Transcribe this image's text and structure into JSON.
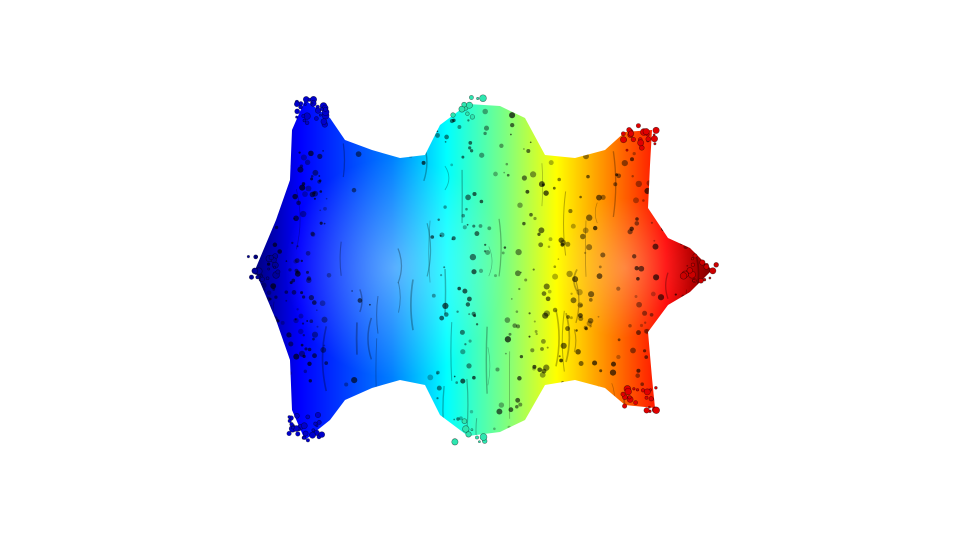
{
  "scene": {
    "background_color": "#ffffff",
    "subject": "fractal-3d-render",
    "colormap": "jet",
    "colormap_stops": [
      "#00007f",
      "#0000ff",
      "#007fff",
      "#00ffff",
      "#7fff7f",
      "#ffff00",
      "#ff7f00",
      "#ff0000",
      "#7f0000"
    ],
    "shading": "dark-speckled"
  }
}
